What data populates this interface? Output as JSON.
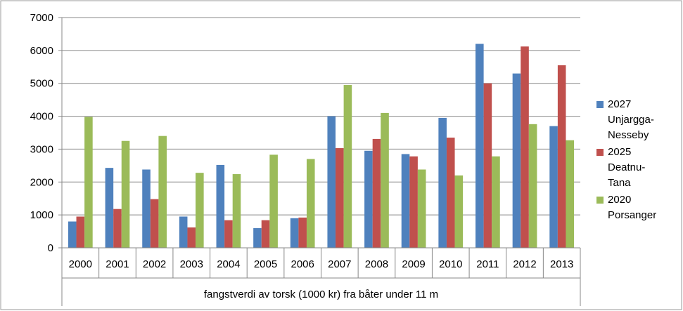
{
  "chart_data": {
    "type": "bar",
    "x_label": "fangstverdi av torsk (1000 kr) fra båter under 11 m",
    "categories": [
      "2000",
      "2001",
      "2002",
      "2003",
      "2004",
      "2005",
      "2006",
      "2007",
      "2008",
      "2009",
      "2010",
      "2011",
      "2012",
      "2013"
    ],
    "series": [
      {
        "name": "2027 Unjargga-Nesseby",
        "color": "#4f81bd",
        "values": [
          800,
          2430,
          2380,
          950,
          2520,
          600,
          900,
          4000,
          2950,
          2850,
          3950,
          6200,
          5300,
          3700
        ]
      },
      {
        "name": "2025 Deatnu-Tana",
        "color": "#c0504d",
        "values": [
          950,
          1180,
          1480,
          620,
          840,
          840,
          920,
          3030,
          3310,
          2780,
          3350,
          5000,
          6120,
          5550
        ]
      },
      {
        "name": "2020 Porsanger",
        "color": "#9bbb59",
        "values": [
          3980,
          3250,
          3400,
          2280,
          2240,
          2830,
          2700,
          4950,
          4100,
          2380,
          2200,
          2780,
          3760,
          3270
        ]
      }
    ],
    "ylim": [
      0,
      7000
    ],
    "yticks": [
      0,
      1000,
      2000,
      3000,
      4000,
      5000,
      6000,
      7000
    ],
    "grid": true,
    "legend": "right"
  }
}
